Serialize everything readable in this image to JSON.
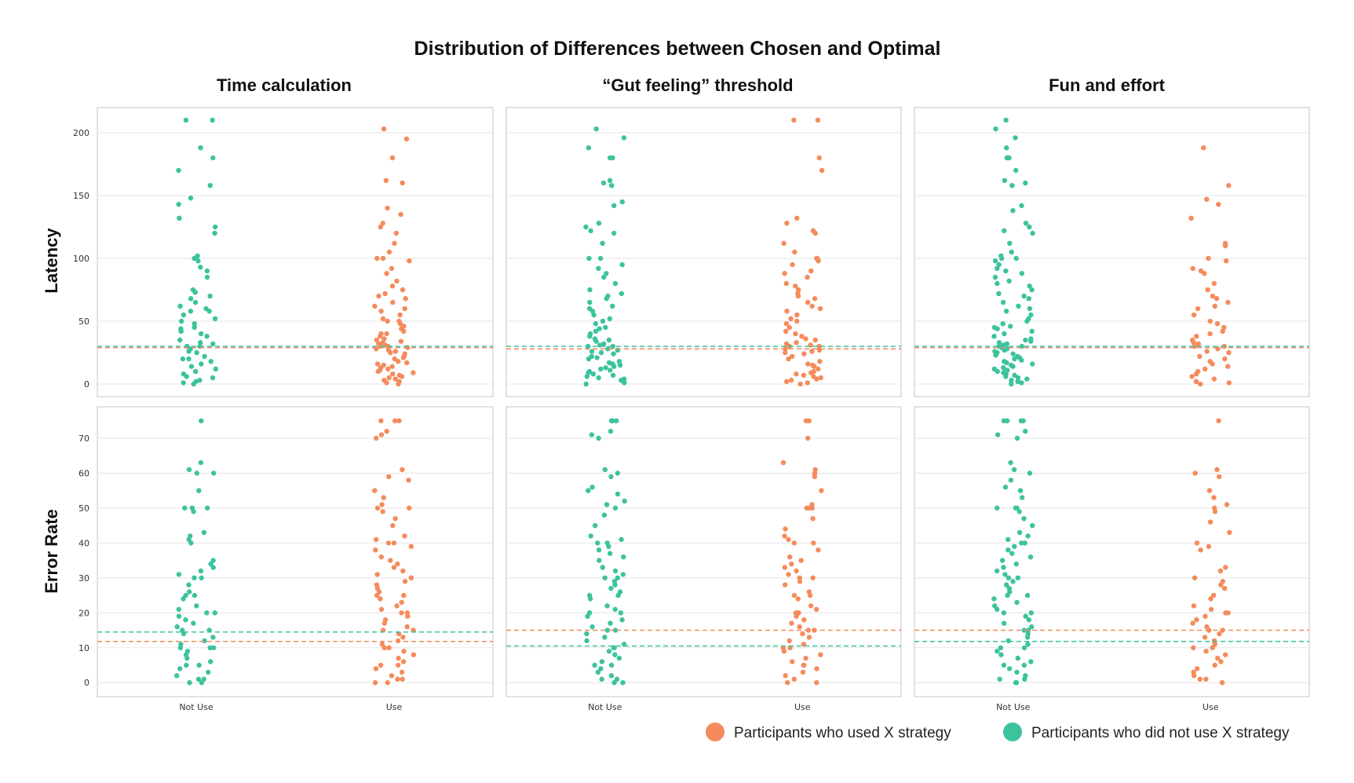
{
  "title": "Distribution of Differences between Chosen and Optimal",
  "colors": {
    "used": "#f58b5c",
    "not_used": "#3cc39e"
  },
  "legend": [
    {
      "key": "used",
      "label": "Participants who used X strategy"
    },
    {
      "key": "not_used",
      "label": "Participants who did not use X strategy"
    }
  ],
  "chart_data": {
    "type": "scatter",
    "subtype": "strip",
    "columns": [
      "Time calculation",
      "“Gut feeling” threshold",
      "Fun and effort"
    ],
    "rows": [
      {
        "name": "Latency",
        "ylim": [
          -10,
          220
        ],
        "ticks": [
          0,
          50,
          100,
          150,
          200
        ]
      },
      {
        "name": "Error Rate",
        "ylim": [
          -4,
          79
        ],
        "ticks": [
          0,
          10,
          20,
          30,
          40,
          50,
          60,
          70
        ]
      }
    ],
    "categories": [
      "Not Use",
      "Use"
    ],
    "category_keys": [
      "not_used",
      "used"
    ],
    "reference_lines": {
      "Latency": [
        {
          "not_used": 30,
          "used": 29
        },
        {
          "not_used": 30,
          "used": 28
        },
        {
          "not_used": 30,
          "used": 29
        }
      ],
      "Error Rate": [
        {
          "not_used": 14.5,
          "used": 11.8
        },
        {
          "not_used": 10.5,
          "used": 15
        },
        {
          "not_used": 11.8,
          "used": 15
        }
      ]
    },
    "series": [
      {
        "row": "Latency",
        "column": "Time calculation",
        "not_used": [
          210,
          210,
          188,
          180,
          170,
          158,
          148,
          143,
          132,
          125,
          120,
          102,
          100,
          98,
          93,
          90,
          85,
          75,
          73,
          70,
          68,
          65,
          62,
          60,
          58,
          58,
          55,
          52,
          50,
          48,
          45,
          44,
          42,
          40,
          38,
          35,
          33,
          32,
          30,
          30,
          28,
          26,
          25,
          22,
          20,
          20,
          18,
          16,
          14,
          12,
          10,
          8,
          6,
          5,
          3,
          2,
          1,
          0
        ],
        "used": [
          203,
          195,
          180,
          162,
          160,
          140,
          135,
          128,
          125,
          120,
          112,
          105,
          100,
          100,
          98,
          92,
          88,
          82,
          78,
          75,
          72,
          70,
          68,
          65,
          62,
          60,
          58,
          55,
          52,
          50,
          50,
          48,
          46,
          44,
          42,
          40,
          40,
          38,
          36,
          35,
          34,
          33,
          32,
          31,
          30,
          30,
          29,
          28,
          27,
          26,
          25,
          24,
          22,
          21,
          20,
          18,
          17,
          16,
          15,
          14,
          13,
          12,
          11,
          10,
          9,
          8,
          7,
          6,
          5,
          4,
          3,
          2,
          1,
          0
        ]
      },
      {
        "row": "Latency",
        "column": "“Gut feeling” threshold",
        "not_used": [
          203,
          196,
          188,
          180,
          180,
          162,
          160,
          158,
          145,
          142,
          128,
          125,
          122,
          120,
          112,
          100,
          100,
          95,
          92,
          88,
          85,
          80,
          75,
          72,
          70,
          68,
          65,
          62,
          60,
          58,
          55,
          52,
          50,
          48,
          45,
          44,
          42,
          40,
          38,
          36,
          35,
          34,
          32,
          31,
          30,
          30,
          28,
          27,
          26,
          25,
          24,
          22,
          21,
          20,
          18,
          17,
          16,
          15,
          14,
          13,
          12,
          11,
          10,
          9,
          8,
          7,
          6,
          5,
          4,
          3,
          2,
          1,
          0
        ],
        "used": [
          210,
          210,
          180,
          170,
          132,
          128,
          122,
          120,
          112,
          105,
          100,
          100,
          98,
          95,
          90,
          88,
          85,
          80,
          78,
          75,
          72,
          70,
          68,
          65,
          62,
          60,
          58,
          55,
          52,
          50,
          48,
          45,
          42,
          40,
          38,
          36,
          35,
          33,
          32,
          31,
          30,
          30,
          28,
          27,
          26,
          25,
          24,
          22,
          20,
          18,
          16,
          15,
          14,
          12,
          10,
          9,
          8,
          7,
          6,
          5,
          4,
          3,
          2,
          1,
          0
        ]
      },
      {
        "row": "Latency",
        "column": "Fun and effort",
        "not_used": [
          210,
          203,
          196,
          188,
          180,
          180,
          170,
          162,
          160,
          158,
          142,
          138,
          128,
          125,
          122,
          120,
          112,
          105,
          102,
          100,
          100,
          98,
          95,
          92,
          90,
          88,
          85,
          82,
          80,
          78,
          75,
          72,
          70,
          68,
          65,
          62,
          60,
          58,
          55,
          52,
          50,
          48,
          46,
          45,
          44,
          42,
          40,
          38,
          36,
          35,
          34,
          33,
          32,
          31,
          30,
          30,
          29,
          28,
          27,
          26,
          25,
          24,
          23,
          22,
          21,
          20,
          19,
          18,
          17,
          16,
          15,
          14,
          13,
          12,
          11,
          10,
          9,
          8,
          7,
          6,
          5,
          4,
          3,
          2,
          1,
          0
        ],
        "used": [
          188,
          158,
          147,
          143,
          132,
          112,
          110,
          100,
          98,
          92,
          90,
          88,
          80,
          75,
          70,
          68,
          65,
          62,
          60,
          55,
          50,
          48,
          45,
          42,
          40,
          38,
          35,
          33,
          32,
          30,
          30,
          28,
          26,
          25,
          22,
          20,
          18,
          16,
          14,
          12,
          10,
          8,
          6,
          4,
          2,
          1,
          0
        ]
      },
      {
        "row": "Error Rate",
        "column": "Time calculation",
        "not_used": [
          75,
          63,
          61,
          60,
          60,
          55,
          50,
          50,
          50,
          49,
          43,
          42,
          41,
          40,
          35,
          34,
          33,
          32,
          31,
          30,
          30,
          28,
          26,
          25,
          25,
          24,
          22,
          21,
          20,
          20,
          19,
          18,
          17,
          16,
          15,
          15,
          14,
          13,
          12,
          11,
          10,
          10,
          10,
          9,
          8,
          7,
          6,
          5,
          5,
          4,
          3,
          2,
          1,
          1,
          0,
          0
        ],
        "used": [
          75,
          75,
          75,
          72,
          71,
          70,
          61,
          59,
          58,
          55,
          53,
          51,
          50,
          50,
          49,
          47,
          45,
          42,
          41,
          40,
          40,
          39,
          38,
          36,
          35,
          34,
          33,
          32,
          31,
          30,
          30,
          29,
          28,
          27,
          26,
          25,
          25,
          24,
          23,
          22,
          21,
          20,
          20,
          19,
          18,
          17,
          16,
          15,
          15,
          14,
          13,
          12,
          11,
          10,
          10,
          9,
          8,
          7,
          6,
          5,
          5,
          4,
          3,
          2,
          1,
          1,
          0,
          0
        ]
      },
      {
        "row": "Error Rate",
        "column": "“Gut feeling” threshold",
        "not_used": [
          75,
          75,
          75,
          72,
          71,
          70,
          61,
          60,
          59,
          56,
          55,
          54,
          52,
          51,
          50,
          48,
          45,
          42,
          41,
          40,
          40,
          39,
          38,
          37,
          36,
          35,
          33,
          32,
          31,
          30,
          30,
          29,
          28,
          27,
          26,
          25,
          25,
          24,
          22,
          21,
          20,
          20,
          19,
          18,
          17,
          16,
          15,
          15,
          14,
          13,
          12,
          11,
          10,
          10,
          9,
          8,
          7,
          6,
          5,
          5,
          4,
          3,
          2,
          1,
          1,
          0,
          0
        ],
        "used": [
          75,
          75,
          70,
          63,
          61,
          60,
          59,
          55,
          51,
          50,
          50,
          50,
          47,
          44,
          42,
          41,
          40,
          40,
          38,
          36,
          35,
          34,
          33,
          32,
          31,
          30,
          30,
          29,
          28,
          26,
          25,
          25,
          24,
          22,
          21,
          20,
          20,
          19,
          18,
          17,
          16,
          15,
          15,
          14,
          13,
          12,
          11,
          10,
          10,
          9,
          8,
          7,
          6,
          5,
          5,
          4,
          3,
          2,
          1,
          0,
          0
        ]
      },
      {
        "row": "Error Rate",
        "column": "Fun and effort",
        "not_used": [
          75,
          75,
          75,
          75,
          72,
          71,
          70,
          63,
          61,
          60,
          58,
          56,
          55,
          53,
          50,
          50,
          50,
          49,
          47,
          45,
          43,
          42,
          41,
          40,
          40,
          39,
          38,
          37,
          36,
          35,
          34,
          33,
          32,
          31,
          30,
          30,
          29,
          28,
          27,
          26,
          25,
          25,
          24,
          23,
          22,
          21,
          20,
          20,
          19,
          18,
          17,
          16,
          15,
          15,
          14,
          13,
          12,
          11,
          10,
          10,
          9,
          8,
          7,
          6,
          5,
          5,
          4,
          3,
          2,
          1,
          1,
          0,
          0
        ],
        "used": [
          75,
          61,
          60,
          59,
          55,
          53,
          51,
          50,
          49,
          46,
          43,
          40,
          39,
          38,
          33,
          32,
          30,
          29,
          28,
          27,
          25,
          24,
          22,
          21,
          20,
          20,
          19,
          18,
          17,
          16,
          15,
          15,
          14,
          13,
          12,
          11,
          10,
          10,
          9,
          8,
          7,
          6,
          5,
          4,
          3,
          2,
          1,
          1,
          0
        ]
      }
    ]
  }
}
